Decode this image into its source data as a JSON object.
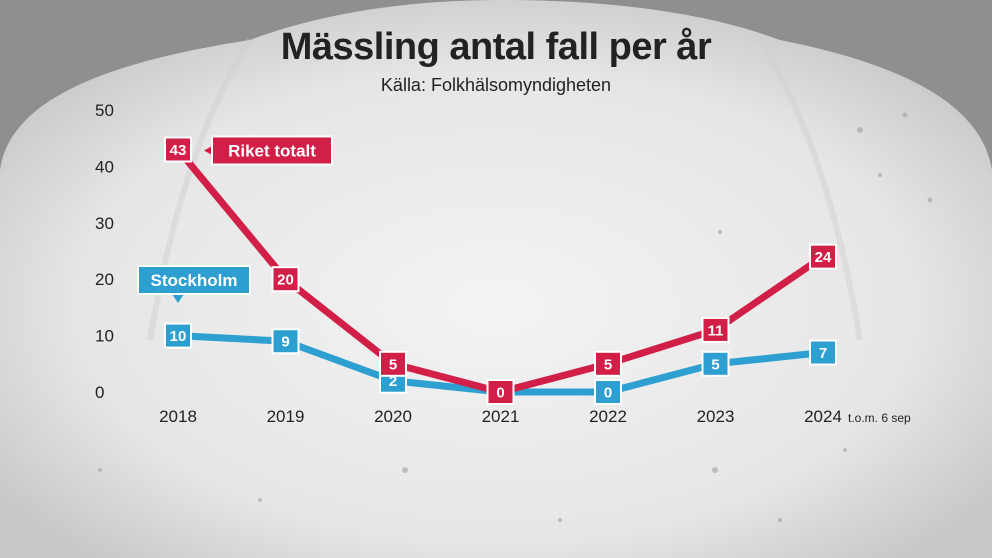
{
  "title": "Mässling antal fall per år",
  "subtitle": "Källa: Folkhälsomyndigheten",
  "colors": {
    "riket": "#d21f47",
    "stockholm": "#2d9fd0"
  },
  "chart_data": {
    "type": "line",
    "title": "Mässling antal fall per år",
    "subtitle": "Källa: Folkhälsomyndigheten",
    "x": [
      "2018",
      "2019",
      "2020",
      "2021",
      "2022",
      "2023",
      "2024"
    ],
    "x_note": "t.o.m. 6 sep",
    "ylim": [
      0,
      50
    ],
    "yticks": [
      0,
      10,
      20,
      30,
      40,
      50
    ],
    "grid": false,
    "series": [
      {
        "name": "Riket totalt",
        "color": "#d21f47",
        "values": [
          43,
          20,
          5,
          0,
          5,
          11,
          24
        ]
      },
      {
        "name": "Stockholm",
        "color": "#2d9fd0",
        "values": [
          10,
          9,
          2,
          0,
          0,
          5,
          7
        ]
      }
    ]
  }
}
